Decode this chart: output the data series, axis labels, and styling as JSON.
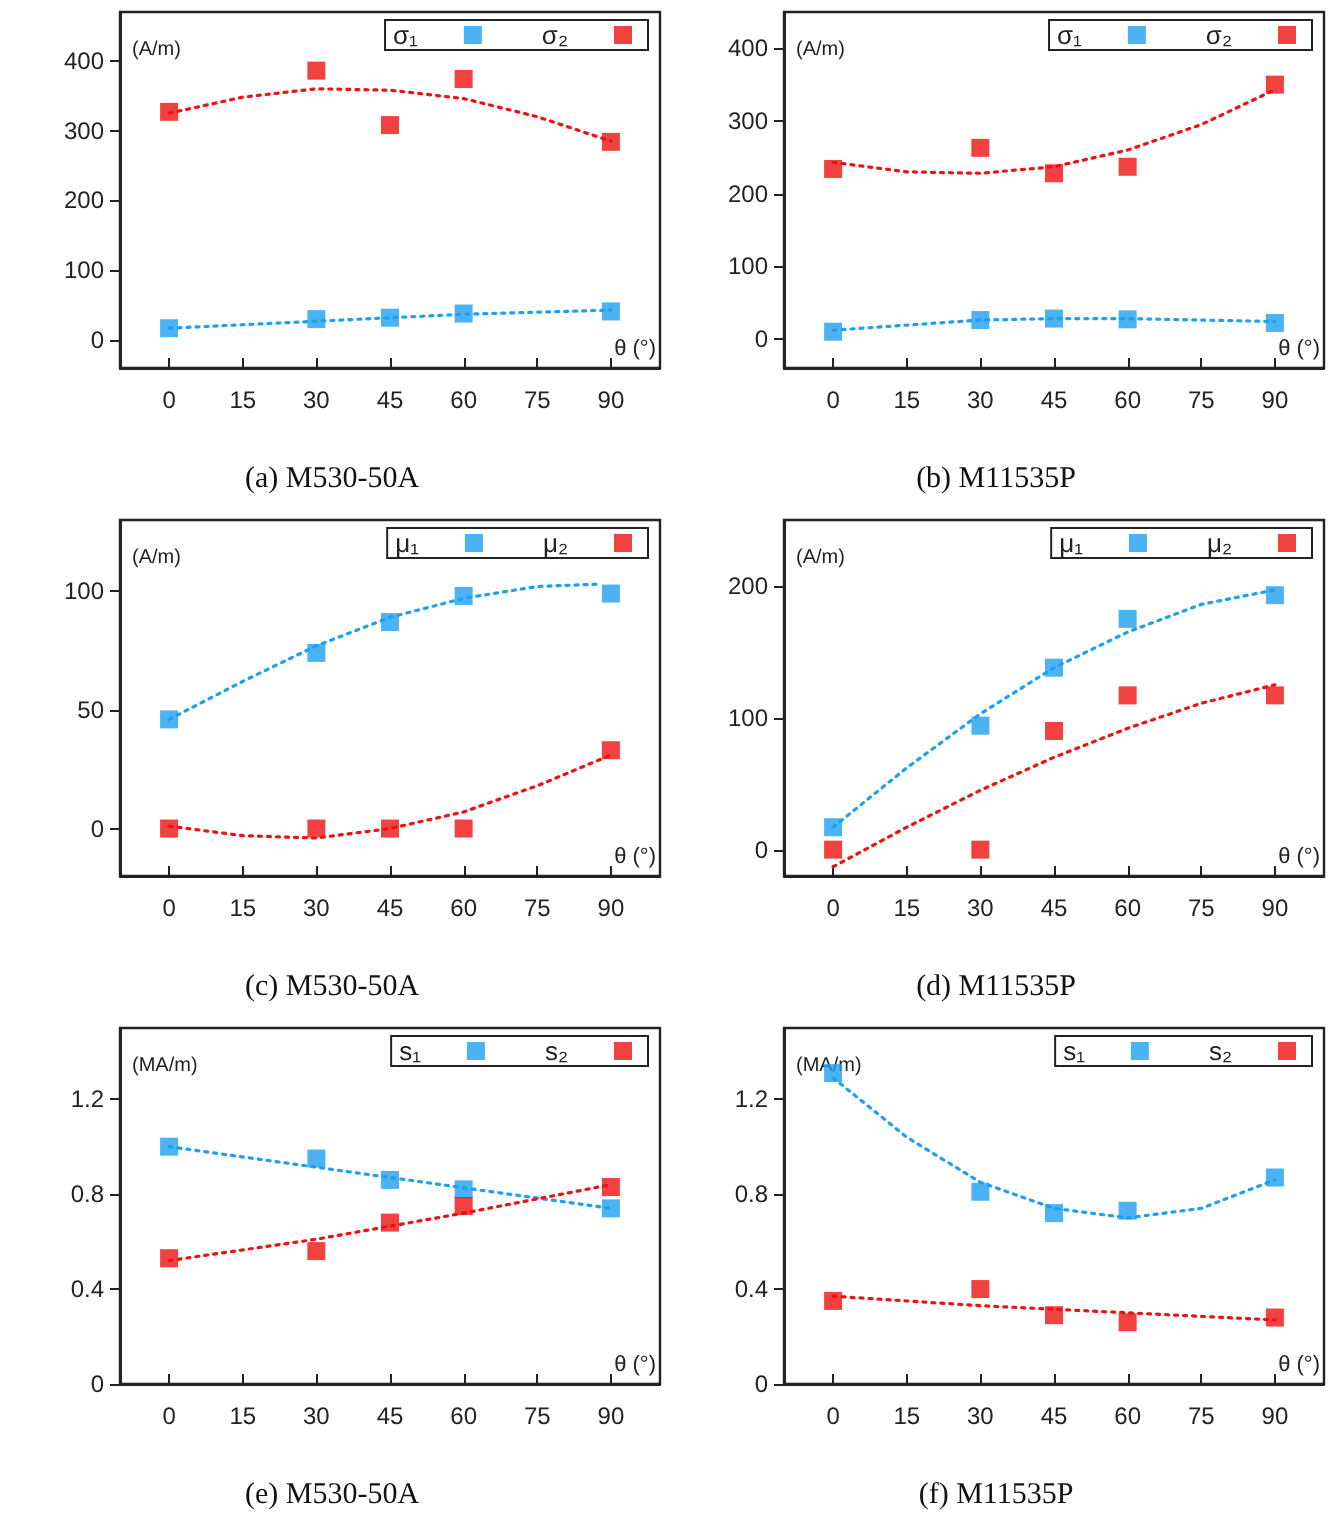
{
  "chart_data": [
    {
      "type": "scatter",
      "title": "(a) M530-50A",
      "ylabel": "(A/m)",
      "xlabel": "θ (°)",
      "xlim": [
        -10,
        100
      ],
      "xticks": [
        0,
        15,
        30,
        45,
        60,
        75,
        90
      ],
      "ylim": [
        -40,
        470
      ],
      "yticks": [
        0,
        100,
        200,
        300,
        400
      ],
      "grid": false,
      "legend": "top right",
      "marker": "square",
      "series": [
        {
          "name": "σ₁",
          "color": "#1ea0f0",
          "x": [
            0,
            30,
            45,
            60,
            90
          ],
          "values": [
            17,
            30,
            32,
            38,
            41
          ]
        },
        {
          "name": "σ₂",
          "color": "#ee1111",
          "x": [
            0,
            30,
            45,
            60,
            90
          ],
          "values": [
            327,
            386,
            308,
            374,
            284
          ]
        },
        {
          "type": "line",
          "color": "#1ea0f0",
          "line_style": "dotted",
          "marker": "none",
          "x": [
            0,
            30,
            60,
            90
          ],
          "values": [
            17,
            27,
            37,
            43
          ]
        },
        {
          "type": "line",
          "color": "#ee1111",
          "line_style": "dotted",
          "marker": "none",
          "x": [
            0,
            15,
            30,
            45,
            60,
            75,
            90
          ],
          "values": [
            325,
            348,
            360,
            358,
            346,
            320,
            285
          ]
        }
      ]
    },
    {
      "type": "scatter",
      "title": "(b) M11535P",
      "ylabel": "(A/m)",
      "xlabel": "θ (°)",
      "xlim": [
        -10,
        100
      ],
      "xticks": [
        0,
        15,
        30,
        45,
        60,
        75,
        90
      ],
      "ylim": [
        -40,
        450
      ],
      "yticks": [
        0,
        100,
        200,
        300,
        400
      ],
      "grid": false,
      "legend": "top right",
      "marker": "square",
      "series": [
        {
          "name": "σ₁",
          "color": "#1ea0f0",
          "x": [
            0,
            30,
            45,
            60,
            90
          ],
          "values": [
            10,
            26,
            28,
            27,
            22
          ]
        },
        {
          "name": "σ₂",
          "color": "#ee1111",
          "x": [
            0,
            30,
            45,
            60,
            90
          ],
          "values": [
            234,
            263,
            228,
            237,
            350
          ]
        },
        {
          "type": "line",
          "color": "#1ea0f0",
          "line_style": "dotted",
          "marker": "none",
          "x": [
            0,
            30,
            45,
            60,
            90
          ],
          "values": [
            12,
            26,
            28,
            28,
            24
          ]
        },
        {
          "type": "line",
          "color": "#ee1111",
          "line_style": "dotted",
          "marker": "none",
          "x": [
            0,
            15,
            30,
            45,
            60,
            75,
            90
          ],
          "values": [
            243,
            230,
            228,
            237,
            260,
            295,
            343
          ]
        }
      ]
    },
    {
      "type": "scatter",
      "title": "(c) M530-50A",
      "ylabel": "(A/m)",
      "xlabel": "θ (°)",
      "xlim": [
        -10,
        100
      ],
      "xticks": [
        0,
        15,
        30,
        45,
        60,
        75,
        90
      ],
      "ylim": [
        -20,
        130
      ],
      "yticks": [
        0,
        50,
        100
      ],
      "grid": false,
      "legend": "top right",
      "marker": "square",
      "series": [
        {
          "name": "μ₁",
          "color": "#1ea0f0",
          "x": [
            0,
            30,
            45,
            60,
            90
          ],
          "values": [
            46,
            74,
            87,
            98,
            99
          ]
        },
        {
          "name": "μ₂",
          "color": "#ee1111",
          "x": [
            0,
            30,
            45,
            60,
            90
          ],
          "values": [
            0,
            0,
            0,
            0,
            33
          ]
        },
        {
          "type": "line",
          "color": "#1ea0f0",
          "line_style": "dotted",
          "marker": "none",
          "x": [
            0,
            15,
            30,
            45,
            60,
            75,
            88
          ],
          "values": [
            46,
            62,
            77,
            89,
            97,
            102,
            103
          ]
        },
        {
          "type": "line",
          "color": "#ee1111",
          "line_style": "dotted",
          "marker": "none",
          "x": [
            0,
            15,
            30,
            45,
            60,
            75,
            90
          ],
          "values": [
            1,
            -3,
            -4,
            0,
            7,
            18,
            31
          ]
        }
      ]
    },
    {
      "type": "scatter",
      "title": "(d) M11535P",
      "ylabel": "(A/m)",
      "xlabel": "θ (°)",
      "xlim": [
        -10,
        100
      ],
      "xticks": [
        0,
        15,
        30,
        45,
        60,
        75,
        90
      ],
      "ylim": [
        -20,
        250
      ],
      "yticks": [
        0,
        100,
        200
      ],
      "grid": false,
      "legend": "top right",
      "marker": "square",
      "series": [
        {
          "name": "μ₁",
          "color": "#1ea0f0",
          "x": [
            0,
            30,
            45,
            60,
            90
          ],
          "values": [
            17,
            94,
            138,
            175,
            193
          ]
        },
        {
          "name": "μ₂",
          "color": "#ee1111",
          "x": [
            0,
            30,
            45,
            60,
            90
          ],
          "values": [
            0,
            0,
            90,
            117,
            117
          ]
        },
        {
          "type": "line",
          "color": "#1ea0f0",
          "line_style": "dotted",
          "marker": "none",
          "x": [
            0,
            15,
            30,
            45,
            60,
            75,
            90
          ],
          "values": [
            17,
            62,
            103,
            138,
            165,
            186,
            197
          ]
        },
        {
          "type": "line",
          "color": "#ee1111",
          "line_style": "dotted",
          "marker": "none",
          "x": [
            0,
            15,
            30,
            45,
            60,
            75,
            90
          ],
          "values": [
            -13,
            17,
            45,
            70,
            92,
            111,
            125
          ]
        }
      ]
    },
    {
      "type": "scatter",
      "title": "(e) M530-50A",
      "ylabel": "(MA/m)",
      "xlabel": "θ (°)",
      "xlim": [
        -10,
        100
      ],
      "xticks": [
        0,
        15,
        30,
        45,
        60,
        75,
        90
      ],
      "ylim": [
        0,
        1.5
      ],
      "yticks": [
        0,
        0.4,
        0.8,
        1.2
      ],
      "grid": false,
      "legend": "top right",
      "marker": "square",
      "series": [
        {
          "name": "s₁",
          "color": "#1ea0f0",
          "x": [
            0,
            30,
            45,
            60,
            90
          ],
          "values": [
            1.0,
            0.95,
            0.86,
            0.82,
            0.74
          ]
        },
        {
          "name": "s₂",
          "color": "#ee1111",
          "x": [
            0,
            30,
            45,
            60,
            90
          ],
          "values": [
            0.53,
            0.56,
            0.68,
            0.75,
            0.83
          ]
        },
        {
          "type": "line",
          "color": "#1ea0f0",
          "line_style": "dotted",
          "marker": "none",
          "x": [
            0,
            45,
            90
          ],
          "values": [
            1.0,
            0.87,
            0.74
          ]
        },
        {
          "type": "line",
          "color": "#ee1111",
          "line_style": "dotted",
          "marker": "none",
          "x": [
            0,
            30,
            60,
            90
          ],
          "values": [
            0.52,
            0.61,
            0.72,
            0.84
          ]
        }
      ]
    },
    {
      "type": "scatter",
      "title": "(f) M11535P",
      "ylabel": "(MA/m)",
      "xlabel": "θ (°)",
      "xlim": [
        -10,
        100
      ],
      "xticks": [
        0,
        15,
        30,
        45,
        60,
        75,
        90
      ],
      "ylim": [
        0,
        1.5
      ],
      "yticks": [
        0,
        0.4,
        0.8,
        1.2
      ],
      "grid": false,
      "legend": "top right",
      "marker": "square",
      "series": [
        {
          "name": "s₁",
          "color": "#1ea0f0",
          "x": [
            0,
            30,
            45,
            60,
            90
          ],
          "values": [
            1.31,
            0.81,
            0.72,
            0.73,
            0.87
          ]
        },
        {
          "name": "s₂",
          "color": "#ee1111",
          "x": [
            0,
            30,
            45,
            60,
            90
          ],
          "values": [
            0.35,
            0.4,
            0.29,
            0.26,
            0.28
          ]
        },
        {
          "type": "line",
          "color": "#1ea0f0",
          "line_style": "dotted",
          "marker": "none",
          "x": [
            0,
            15,
            30,
            45,
            60,
            75,
            90
          ],
          "values": [
            1.29,
            1.04,
            0.85,
            0.74,
            0.7,
            0.74,
            0.86
          ]
        },
        {
          "type": "line",
          "color": "#ee1111",
          "line_style": "dotted",
          "marker": "none",
          "x": [
            0,
            30,
            60,
            90
          ],
          "values": [
            0.37,
            0.33,
            0.3,
            0.27
          ]
        }
      ]
    }
  ]
}
